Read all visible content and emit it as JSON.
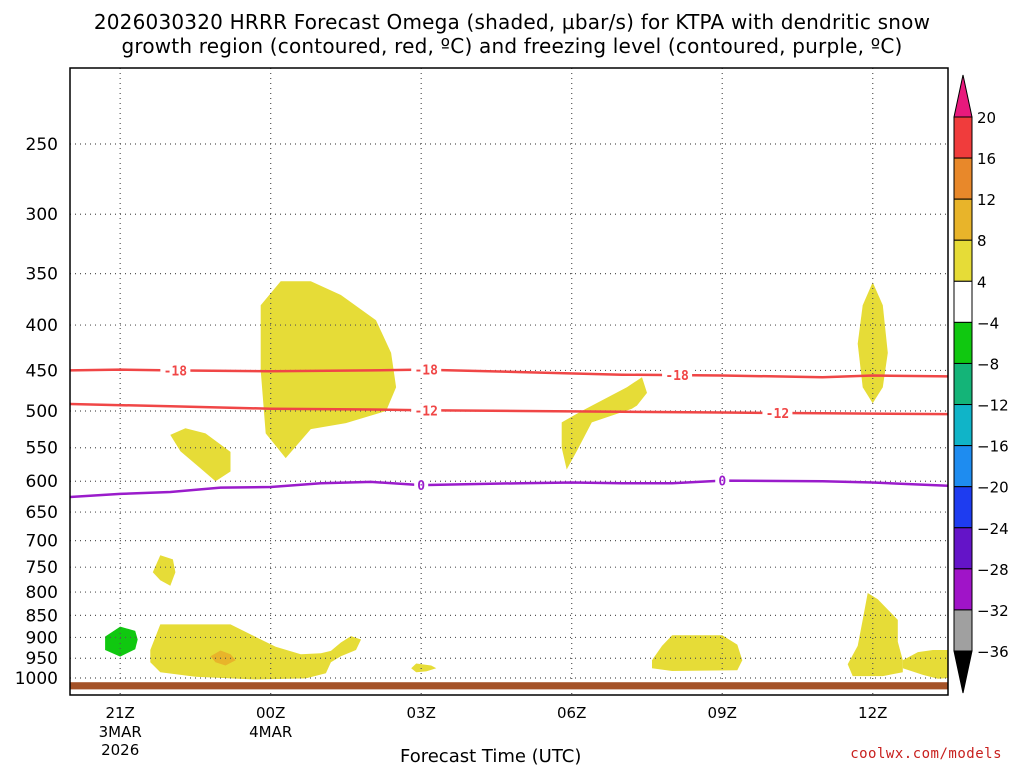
{
  "chart_data": {
    "type": "time-height cross section",
    "title_line1": "2026030320 HRRR Forecast Omega (shaded, µbar/s) for KTPA with dendritic snow",
    "title_line2": "growth region (contoured, red, ºC) and freezing level (contoured, purple, ºC)",
    "xlabel": "Forecast Time (UTC)",
    "credit": "coolwx.com/models",
    "x_range_hours": [
      -1.0,
      16.5
    ],
    "y_range_hPa": [
      1030,
      200
    ],
    "y_ticks": [
      250,
      300,
      350,
      400,
      450,
      500,
      550,
      600,
      650,
      700,
      750,
      800,
      850,
      900,
      950,
      1000
    ],
    "x_ticks": [
      {
        "hour": 0,
        "label": "21Z",
        "sub1": "3MAR",
        "sub2": "2026"
      },
      {
        "hour": 3,
        "label": "00Z",
        "sub1": "4MAR",
        "sub2": ""
      },
      {
        "hour": 6,
        "label": "03Z",
        "sub1": "",
        "sub2": ""
      },
      {
        "hour": 9,
        "label": "06Z",
        "sub1": "",
        "sub2": ""
      },
      {
        "hour": 12,
        "label": "09Z",
        "sub1": "",
        "sub2": ""
      },
      {
        "hour": 15,
        "label": "12Z",
        "sub1": "",
        "sub2": ""
      }
    ],
    "colorbar": {
      "labels": [
        "20",
        "16",
        "12",
        "8",
        "4",
        "−4",
        "−8",
        "−12",
        "−16",
        "−20",
        "−24",
        "−28",
        "−32",
        "−36"
      ],
      "colors": [
        "#f03c3c",
        "#e8882a",
        "#e8b42a",
        "#e6dc37",
        "#ffffff",
        "#10c810",
        "#14b478",
        "#10b4c8",
        "#1e8cf0",
        "#1e3cf0",
        "#6414c8",
        "#a014c8",
        "#a0a0a0"
      ],
      "top_arrow_color": "#e8197c",
      "bottom_arrow_color": "#000000"
    },
    "contours": [
      {
        "name": "dgz-top",
        "label": "-18",
        "color": "#f04646",
        "points": [
          [
            -1,
            450
          ],
          [
            0,
            449
          ],
          [
            1,
            450
          ],
          [
            3,
            451
          ],
          [
            5,
            450
          ],
          [
            6,
            449
          ],
          [
            8,
            452
          ],
          [
            10,
            455
          ],
          [
            12,
            456
          ],
          [
            14,
            458
          ],
          [
            15,
            456
          ],
          [
            16.5,
            457
          ]
        ],
        "label_hours": [
          1.1,
          6.1,
          11.1
        ]
      },
      {
        "name": "dgz-bottom",
        "label": "-12",
        "color": "#f04646",
        "points": [
          [
            -1,
            491
          ],
          [
            1,
            494
          ],
          [
            3,
            497
          ],
          [
            5,
            498
          ],
          [
            6,
            499
          ],
          [
            8,
            500
          ],
          [
            10,
            501
          ],
          [
            12,
            502
          ],
          [
            14,
            503
          ],
          [
            16.5,
            504
          ]
        ],
        "label_hours": [
          6.1,
          13.1
        ]
      },
      {
        "name": "freezing-level",
        "label": "0",
        "color": "#9a1ccb",
        "points": [
          [
            -1,
            625
          ],
          [
            0,
            620
          ],
          [
            1,
            617
          ],
          [
            2,
            610
          ],
          [
            3,
            609
          ],
          [
            4,
            603
          ],
          [
            5,
            601
          ],
          [
            6,
            606
          ],
          [
            8,
            603
          ],
          [
            9,
            602
          ],
          [
            10,
            603
          ],
          [
            11,
            603
          ],
          [
            12,
            599
          ],
          [
            14,
            600
          ],
          [
            15,
            602
          ],
          [
            16.5,
            607
          ]
        ],
        "label_hours": [
          6.0,
          12.0
        ]
      }
    ],
    "omega_regions": [
      {
        "color": "#e6dc37",
        "label": "4 to 8",
        "points": [
          [
            3.8,
            357
          ],
          [
            4.4,
            370
          ],
          [
            5.1,
            395
          ],
          [
            5.4,
            430
          ],
          [
            5.5,
            470
          ],
          [
            5.3,
            500
          ],
          [
            4.5,
            516
          ],
          [
            3.8,
            524
          ],
          [
            3.3,
            565
          ],
          [
            2.9,
            530
          ],
          [
            2.8,
            450
          ],
          [
            2.8,
            380
          ],
          [
            3.2,
            357
          ]
        ]
      },
      {
        "color": "#e6dc37",
        "label": "4 to 8",
        "points": [
          [
            1.3,
            523
          ],
          [
            1.7,
            530
          ],
          [
            2.2,
            556
          ],
          [
            2.2,
            585
          ],
          [
            1.9,
            600
          ],
          [
            1.6,
            580
          ],
          [
            1.2,
            555
          ],
          [
            1.0,
            532
          ]
        ]
      },
      {
        "color": "#e6dc37",
        "label": "4 to 8",
        "points": [
          [
            8.8,
            515
          ],
          [
            9.2,
            500
          ],
          [
            10.1,
            470
          ],
          [
            10.4,
            458
          ],
          [
            10.5,
            477
          ],
          [
            10.3,
            493
          ],
          [
            10.2,
            497
          ],
          [
            9.4,
            515
          ],
          [
            9.1,
            555
          ],
          [
            8.9,
            582
          ],
          [
            8.8,
            550
          ]
        ]
      },
      {
        "color": "#e6dc37",
        "label": "4 to 8",
        "points": [
          [
            15,
            358
          ],
          [
            15.2,
            380
          ],
          [
            15.3,
            430
          ],
          [
            15.2,
            470
          ],
          [
            15.0,
            490
          ],
          [
            14.8,
            470
          ],
          [
            14.7,
            420
          ],
          [
            14.8,
            380
          ]
        ]
      },
      {
        "color": "#e6dc37",
        "label": "4 to 8",
        "points": [
          [
            0.8,
            727
          ],
          [
            1.05,
            735
          ],
          [
            1.1,
            760
          ],
          [
            1.0,
            787
          ],
          [
            0.8,
            776
          ],
          [
            0.65,
            760
          ]
        ]
      },
      {
        "color": "#e6dc37",
        "label": "4 to 8",
        "points": [
          [
            0.8,
            870
          ],
          [
            2.2,
            870
          ],
          [
            2.6,
            893
          ],
          [
            3.1,
            922
          ],
          [
            3.6,
            940
          ],
          [
            4.0,
            938
          ],
          [
            4.2,
            932
          ],
          [
            4.4,
            912
          ],
          [
            4.6,
            897
          ],
          [
            4.8,
            905
          ],
          [
            4.7,
            930
          ],
          [
            4.4,
            945
          ],
          [
            4.2,
            960
          ],
          [
            4.1,
            988
          ],
          [
            3.7,
            1001
          ],
          [
            2.7,
            1004
          ],
          [
            1.5,
            997
          ],
          [
            0.8,
            985
          ],
          [
            0.6,
            960
          ],
          [
            0.6,
            930
          ]
        ]
      },
      {
        "color": "#e6dc37",
        "label": "4 to 8",
        "points": [
          [
            5.9,
            963
          ],
          [
            6.2,
            968
          ],
          [
            6.3,
            975
          ],
          [
            6.1,
            983
          ],
          [
            5.9,
            985
          ],
          [
            5.8,
            975
          ]
        ]
      },
      {
        "color": "#e6dc37",
        "label": "4 to 8",
        "points": [
          [
            11,
            895
          ],
          [
            12,
            895
          ],
          [
            12.3,
            917
          ],
          [
            12.4,
            955
          ],
          [
            12.3,
            980
          ],
          [
            11,
            982
          ],
          [
            10.6,
            975
          ],
          [
            10.6,
            955
          ],
          [
            10.8,
            920
          ]
        ]
      },
      {
        "color": "#e6dc37",
        "label": "4 to 8",
        "points": [
          [
            14.9,
            802
          ],
          [
            15.1,
            815
          ],
          [
            15.5,
            860
          ],
          [
            15.5,
            910
          ],
          [
            15.6,
            955
          ],
          [
            15.6,
            985
          ],
          [
            15.2,
            995
          ],
          [
            14.6,
            995
          ],
          [
            14.5,
            965
          ],
          [
            14.7,
            920
          ],
          [
            14.8,
            860
          ]
        ]
      },
      {
        "color": "#e6dc37",
        "label": "4 to 8",
        "points": [
          [
            16.5,
            930
          ],
          [
            16.5,
            1000
          ],
          [
            16.3,
            1002
          ],
          [
            16.0,
            992
          ],
          [
            15.6,
            975
          ],
          [
            15.6,
            955
          ],
          [
            15.9,
            935
          ],
          [
            16.2,
            930
          ]
        ]
      },
      {
        "color": "#e8b42a",
        "label": "8 to 12",
        "points": [
          [
            2.0,
            931
          ],
          [
            2.2,
            940
          ],
          [
            2.3,
            955
          ],
          [
            2.1,
            968
          ],
          [
            1.9,
            960
          ],
          [
            1.8,
            945
          ]
        ]
      },
      {
        "color": "#10c810",
        "label": "-8 to -4",
        "points": [
          [
            0.0,
            875
          ],
          [
            0.3,
            885
          ],
          [
            0.35,
            905
          ],
          [
            0.3,
            928
          ],
          [
            0.0,
            946
          ],
          [
            -0.3,
            930
          ],
          [
            -0.3,
            898
          ]
        ]
      }
    ],
    "ground": {
      "color": "#a45228",
      "from_hPa": 1030,
      "to_hPa": 1011
    }
  }
}
